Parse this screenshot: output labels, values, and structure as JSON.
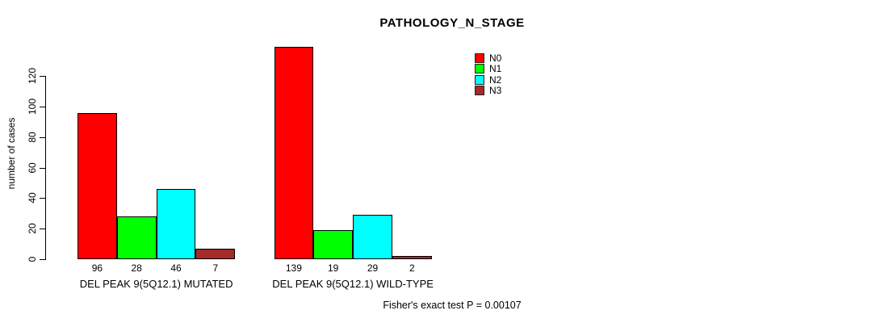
{
  "chart_data": {
    "type": "bar",
    "title": "PATHOLOGY_N_STAGE",
    "xlabel": "",
    "ylabel": "number of cases",
    "yticks": [
      0,
      20,
      40,
      60,
      80,
      100,
      120
    ],
    "ylim": [
      0,
      139
    ],
    "grid": false,
    "legend_position": "top-right",
    "legend": [
      {
        "label": "N0",
        "color": "#FF0000"
      },
      {
        "label": "N1",
        "color": "#00FF00"
      },
      {
        "label": "N2",
        "color": "#00FFFF"
      },
      {
        "label": "N3",
        "color": "#A52A2A"
      }
    ],
    "series_names": [
      "N0",
      "N1",
      "N2",
      "N3"
    ],
    "colors": [
      "#FF0000",
      "#00FF00",
      "#00FFFF",
      "#A52A2A"
    ],
    "groups": [
      {
        "label": "DEL PEAK 9(5Q12.1) MUTATED",
        "values": [
          96,
          28,
          46,
          7
        ]
      },
      {
        "label": "DEL PEAK 9(5Q12.1) WILD-TYPE",
        "values": [
          139,
          19,
          29,
          2
        ]
      }
    ],
    "annotation": "Fisher's exact test P = 0.00107"
  }
}
